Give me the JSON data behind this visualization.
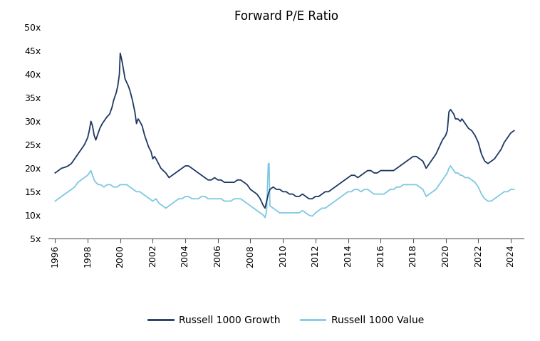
{
  "title": "Forward P/E Ratio",
  "title_fontsize": 12,
  "background_color": "#ffffff",
  "growth_color": "#1f3864",
  "value_color": "#7ec8e3",
  "ylim": [
    5,
    50
  ],
  "yticks": [
    5,
    10,
    15,
    20,
    25,
    30,
    35,
    40,
    45,
    50
  ],
  "ytick_labels": [
    "5x",
    "10x",
    "15x",
    "20x",
    "25x",
    "30x",
    "35x",
    "40x",
    "45x",
    "50x"
  ],
  "xticks": [
    1996,
    1998,
    2000,
    2002,
    2004,
    2006,
    2008,
    2010,
    2012,
    2014,
    2016,
    2018,
    2020,
    2022,
    2024
  ],
  "legend_labels": [
    "Russell 1000 Growth",
    "Russell 1000 Value"
  ],
  "xlim_left": 1995.6,
  "xlim_right": 2024.8,
  "growth_data": [
    [
      1996.0,
      19.0
    ],
    [
      1996.2,
      19.5
    ],
    [
      1996.4,
      20.0
    ],
    [
      1996.6,
      20.2
    ],
    [
      1996.8,
      20.5
    ],
    [
      1997.0,
      21.0
    ],
    [
      1997.2,
      22.0
    ],
    [
      1997.4,
      23.0
    ],
    [
      1997.6,
      24.0
    ],
    [
      1997.8,
      25.0
    ],
    [
      1998.0,
      26.5
    ],
    [
      1998.1,
      28.0
    ],
    [
      1998.2,
      30.0
    ],
    [
      1998.3,
      29.0
    ],
    [
      1998.4,
      27.0
    ],
    [
      1998.5,
      26.0
    ],
    [
      1998.6,
      27.0
    ],
    [
      1998.75,
      28.5
    ],
    [
      1998.9,
      29.5
    ],
    [
      1999.0,
      30.0
    ],
    [
      1999.1,
      30.5
    ],
    [
      1999.2,
      31.0
    ],
    [
      1999.35,
      31.5
    ],
    [
      1999.5,
      33.0
    ],
    [
      1999.6,
      34.5
    ],
    [
      1999.75,
      36.0
    ],
    [
      1999.85,
      37.5
    ],
    [
      1999.95,
      40.0
    ],
    [
      2000.0,
      44.5
    ],
    [
      2000.1,
      43.0
    ],
    [
      2000.2,
      41.0
    ],
    [
      2000.3,
      39.0
    ],
    [
      2000.5,
      37.5
    ],
    [
      2000.6,
      36.5
    ],
    [
      2000.75,
      34.5
    ],
    [
      2000.9,
      32.0
    ],
    [
      2001.0,
      29.5
    ],
    [
      2001.1,
      30.5
    ],
    [
      2001.2,
      30.0
    ],
    [
      2001.35,
      29.0
    ],
    [
      2001.5,
      27.0
    ],
    [
      2001.6,
      26.0
    ],
    [
      2001.75,
      24.5
    ],
    [
      2001.9,
      23.5
    ],
    [
      2002.0,
      22.0
    ],
    [
      2002.1,
      22.5
    ],
    [
      2002.2,
      22.0
    ],
    [
      2002.35,
      21.0
    ],
    [
      2002.5,
      20.0
    ],
    [
      2002.65,
      19.5
    ],
    [
      2002.8,
      19.0
    ],
    [
      2002.9,
      18.5
    ],
    [
      2003.0,
      18.0
    ],
    [
      2003.2,
      18.5
    ],
    [
      2003.4,
      19.0
    ],
    [
      2003.6,
      19.5
    ],
    [
      2003.8,
      20.0
    ],
    [
      2004.0,
      20.5
    ],
    [
      2004.2,
      20.5
    ],
    [
      2004.4,
      20.0
    ],
    [
      2004.6,
      19.5
    ],
    [
      2004.8,
      19.0
    ],
    [
      2005.0,
      18.5
    ],
    [
      2005.2,
      18.0
    ],
    [
      2005.4,
      17.5
    ],
    [
      2005.6,
      17.5
    ],
    [
      2005.8,
      18.0
    ],
    [
      2006.0,
      17.5
    ],
    [
      2006.2,
      17.5
    ],
    [
      2006.4,
      17.0
    ],
    [
      2006.6,
      17.0
    ],
    [
      2006.8,
      17.0
    ],
    [
      2007.0,
      17.0
    ],
    [
      2007.2,
      17.5
    ],
    [
      2007.4,
      17.5
    ],
    [
      2007.6,
      17.0
    ],
    [
      2007.8,
      16.5
    ],
    [
      2008.0,
      15.5
    ],
    [
      2008.2,
      15.0
    ],
    [
      2008.4,
      14.5
    ],
    [
      2008.6,
      13.5
    ],
    [
      2008.8,
      12.0
    ],
    [
      2008.9,
      11.5
    ],
    [
      2009.0,
      13.0
    ],
    [
      2009.1,
      14.5
    ],
    [
      2009.2,
      15.5
    ],
    [
      2009.4,
      16.0
    ],
    [
      2009.6,
      15.5
    ],
    [
      2009.8,
      15.5
    ],
    [
      2010.0,
      15.0
    ],
    [
      2010.2,
      15.0
    ],
    [
      2010.4,
      14.5
    ],
    [
      2010.6,
      14.5
    ],
    [
      2010.8,
      14.0
    ],
    [
      2011.0,
      14.0
    ],
    [
      2011.2,
      14.5
    ],
    [
      2011.4,
      14.0
    ],
    [
      2011.6,
      13.5
    ],
    [
      2011.8,
      13.5
    ],
    [
      2012.0,
      14.0
    ],
    [
      2012.2,
      14.0
    ],
    [
      2012.4,
      14.5
    ],
    [
      2012.6,
      15.0
    ],
    [
      2012.8,
      15.0
    ],
    [
      2013.0,
      15.5
    ],
    [
      2013.2,
      16.0
    ],
    [
      2013.4,
      16.5
    ],
    [
      2013.6,
      17.0
    ],
    [
      2013.8,
      17.5
    ],
    [
      2014.0,
      18.0
    ],
    [
      2014.2,
      18.5
    ],
    [
      2014.4,
      18.5
    ],
    [
      2014.6,
      18.0
    ],
    [
      2014.8,
      18.5
    ],
    [
      2015.0,
      19.0
    ],
    [
      2015.2,
      19.5
    ],
    [
      2015.4,
      19.5
    ],
    [
      2015.6,
      19.0
    ],
    [
      2015.8,
      19.0
    ],
    [
      2016.0,
      19.5
    ],
    [
      2016.2,
      19.5
    ],
    [
      2016.4,
      19.5
    ],
    [
      2016.6,
      19.5
    ],
    [
      2016.8,
      19.5
    ],
    [
      2017.0,
      20.0
    ],
    [
      2017.2,
      20.5
    ],
    [
      2017.4,
      21.0
    ],
    [
      2017.6,
      21.5
    ],
    [
      2017.8,
      22.0
    ],
    [
      2018.0,
      22.5
    ],
    [
      2018.2,
      22.5
    ],
    [
      2018.4,
      22.0
    ],
    [
      2018.6,
      21.5
    ],
    [
      2018.8,
      20.0
    ],
    [
      2019.0,
      21.0
    ],
    [
      2019.2,
      22.0
    ],
    [
      2019.4,
      23.0
    ],
    [
      2019.6,
      24.5
    ],
    [
      2019.8,
      26.0
    ],
    [
      2020.0,
      27.0
    ],
    [
      2020.1,
      28.0
    ],
    [
      2020.2,
      32.0
    ],
    [
      2020.3,
      32.5
    ],
    [
      2020.4,
      32.0
    ],
    [
      2020.5,
      31.5
    ],
    [
      2020.6,
      30.5
    ],
    [
      2020.75,
      30.5
    ],
    [
      2020.9,
      30.0
    ],
    [
      2021.0,
      30.5
    ],
    [
      2021.2,
      29.5
    ],
    [
      2021.4,
      28.5
    ],
    [
      2021.6,
      28.0
    ],
    [
      2021.8,
      27.0
    ],
    [
      2022.0,
      25.5
    ],
    [
      2022.2,
      23.0
    ],
    [
      2022.4,
      21.5
    ],
    [
      2022.6,
      21.0
    ],
    [
      2022.8,
      21.5
    ],
    [
      2023.0,
      22.0
    ],
    [
      2023.2,
      23.0
    ],
    [
      2023.4,
      24.0
    ],
    [
      2023.6,
      25.5
    ],
    [
      2023.8,
      26.5
    ],
    [
      2024.0,
      27.5
    ],
    [
      2024.2,
      28.0
    ]
  ],
  "value_data": [
    [
      1996.0,
      13.0
    ],
    [
      1996.2,
      13.5
    ],
    [
      1996.4,
      14.0
    ],
    [
      1996.6,
      14.5
    ],
    [
      1996.8,
      15.0
    ],
    [
      1997.0,
      15.5
    ],
    [
      1997.2,
      16.0
    ],
    [
      1997.4,
      17.0
    ],
    [
      1997.6,
      17.5
    ],
    [
      1997.8,
      18.0
    ],
    [
      1998.0,
      18.5
    ],
    [
      1998.1,
      19.0
    ],
    [
      1998.2,
      19.5
    ],
    [
      1998.3,
      18.5
    ],
    [
      1998.4,
      17.5
    ],
    [
      1998.5,
      17.0
    ],
    [
      1998.65,
      16.5
    ],
    [
      1998.8,
      16.5
    ],
    [
      1999.0,
      16.0
    ],
    [
      1999.2,
      16.5
    ],
    [
      1999.4,
      16.5
    ],
    [
      1999.6,
      16.0
    ],
    [
      1999.8,
      16.0
    ],
    [
      2000.0,
      16.5
    ],
    [
      2000.2,
      16.5
    ],
    [
      2000.4,
      16.5
    ],
    [
      2000.6,
      16.0
    ],
    [
      2000.8,
      15.5
    ],
    [
      2001.0,
      15.0
    ],
    [
      2001.2,
      15.0
    ],
    [
      2001.4,
      14.5
    ],
    [
      2001.6,
      14.0
    ],
    [
      2001.8,
      13.5
    ],
    [
      2002.0,
      13.0
    ],
    [
      2002.2,
      13.5
    ],
    [
      2002.4,
      12.5
    ],
    [
      2002.6,
      12.0
    ],
    [
      2002.8,
      11.5
    ],
    [
      2003.0,
      12.0
    ],
    [
      2003.2,
      12.5
    ],
    [
      2003.4,
      13.0
    ],
    [
      2003.6,
      13.5
    ],
    [
      2003.8,
      13.5
    ],
    [
      2004.0,
      14.0
    ],
    [
      2004.2,
      14.0
    ],
    [
      2004.4,
      13.5
    ],
    [
      2004.6,
      13.5
    ],
    [
      2004.8,
      13.5
    ],
    [
      2005.0,
      14.0
    ],
    [
      2005.2,
      14.0
    ],
    [
      2005.4,
      13.5
    ],
    [
      2005.6,
      13.5
    ],
    [
      2005.8,
      13.5
    ],
    [
      2006.0,
      13.5
    ],
    [
      2006.2,
      13.5
    ],
    [
      2006.4,
      13.0
    ],
    [
      2006.6,
      13.0
    ],
    [
      2006.8,
      13.0
    ],
    [
      2007.0,
      13.5
    ],
    [
      2007.2,
      13.5
    ],
    [
      2007.4,
      13.5
    ],
    [
      2007.6,
      13.0
    ],
    [
      2007.8,
      12.5
    ],
    [
      2008.0,
      12.0
    ],
    [
      2008.2,
      11.5
    ],
    [
      2008.4,
      11.0
    ],
    [
      2008.6,
      10.5
    ],
    [
      2008.8,
      10.0
    ],
    [
      2008.9,
      9.5
    ],
    [
      2009.0,
      11.0
    ],
    [
      2009.1,
      21.0
    ],
    [
      2009.15,
      21.0
    ],
    [
      2009.2,
      12.0
    ],
    [
      2009.4,
      11.5
    ],
    [
      2009.6,
      11.0
    ],
    [
      2009.8,
      10.5
    ],
    [
      2010.0,
      10.5
    ],
    [
      2010.2,
      10.5
    ],
    [
      2010.4,
      10.5
    ],
    [
      2010.6,
      10.5
    ],
    [
      2010.8,
      10.5
    ],
    [
      2011.0,
      10.5
    ],
    [
      2011.2,
      11.0
    ],
    [
      2011.4,
      10.5
    ],
    [
      2011.6,
      10.0
    ],
    [
      2011.8,
      9.8
    ],
    [
      2012.0,
      10.5
    ],
    [
      2012.2,
      11.0
    ],
    [
      2012.4,
      11.5
    ],
    [
      2012.6,
      11.5
    ],
    [
      2012.8,
      12.0
    ],
    [
      2013.0,
      12.5
    ],
    [
      2013.2,
      13.0
    ],
    [
      2013.4,
      13.5
    ],
    [
      2013.6,
      14.0
    ],
    [
      2013.8,
      14.5
    ],
    [
      2014.0,
      15.0
    ],
    [
      2014.2,
      15.0
    ],
    [
      2014.4,
      15.5
    ],
    [
      2014.6,
      15.5
    ],
    [
      2014.8,
      15.0
    ],
    [
      2015.0,
      15.5
    ],
    [
      2015.2,
      15.5
    ],
    [
      2015.4,
      15.0
    ],
    [
      2015.6,
      14.5
    ],
    [
      2015.8,
      14.5
    ],
    [
      2016.0,
      14.5
    ],
    [
      2016.2,
      14.5
    ],
    [
      2016.4,
      15.0
    ],
    [
      2016.6,
      15.5
    ],
    [
      2016.8,
      15.5
    ],
    [
      2017.0,
      16.0
    ],
    [
      2017.2,
      16.0
    ],
    [
      2017.4,
      16.5
    ],
    [
      2017.6,
      16.5
    ],
    [
      2017.8,
      16.5
    ],
    [
      2018.0,
      16.5
    ],
    [
      2018.2,
      16.5
    ],
    [
      2018.4,
      16.0
    ],
    [
      2018.6,
      15.5
    ],
    [
      2018.8,
      14.0
    ],
    [
      2019.0,
      14.5
    ],
    [
      2019.2,
      15.0
    ],
    [
      2019.4,
      15.5
    ],
    [
      2019.6,
      16.5
    ],
    [
      2019.8,
      17.5
    ],
    [
      2020.0,
      18.5
    ],
    [
      2020.1,
      19.0
    ],
    [
      2020.2,
      20.0
    ],
    [
      2020.3,
      20.5
    ],
    [
      2020.4,
      20.0
    ],
    [
      2020.5,
      19.5
    ],
    [
      2020.6,
      19.0
    ],
    [
      2020.75,
      19.0
    ],
    [
      2020.9,
      18.5
    ],
    [
      2021.0,
      18.5
    ],
    [
      2021.2,
      18.0
    ],
    [
      2021.4,
      18.0
    ],
    [
      2021.6,
      17.5
    ],
    [
      2021.8,
      17.0
    ],
    [
      2022.0,
      16.0
    ],
    [
      2022.2,
      14.5
    ],
    [
      2022.4,
      13.5
    ],
    [
      2022.6,
      13.0
    ],
    [
      2022.8,
      13.0
    ],
    [
      2023.0,
      13.5
    ],
    [
      2023.2,
      14.0
    ],
    [
      2023.4,
      14.5
    ],
    [
      2023.6,
      15.0
    ],
    [
      2023.8,
      15.0
    ],
    [
      2024.0,
      15.5
    ],
    [
      2024.2,
      15.5
    ]
  ]
}
